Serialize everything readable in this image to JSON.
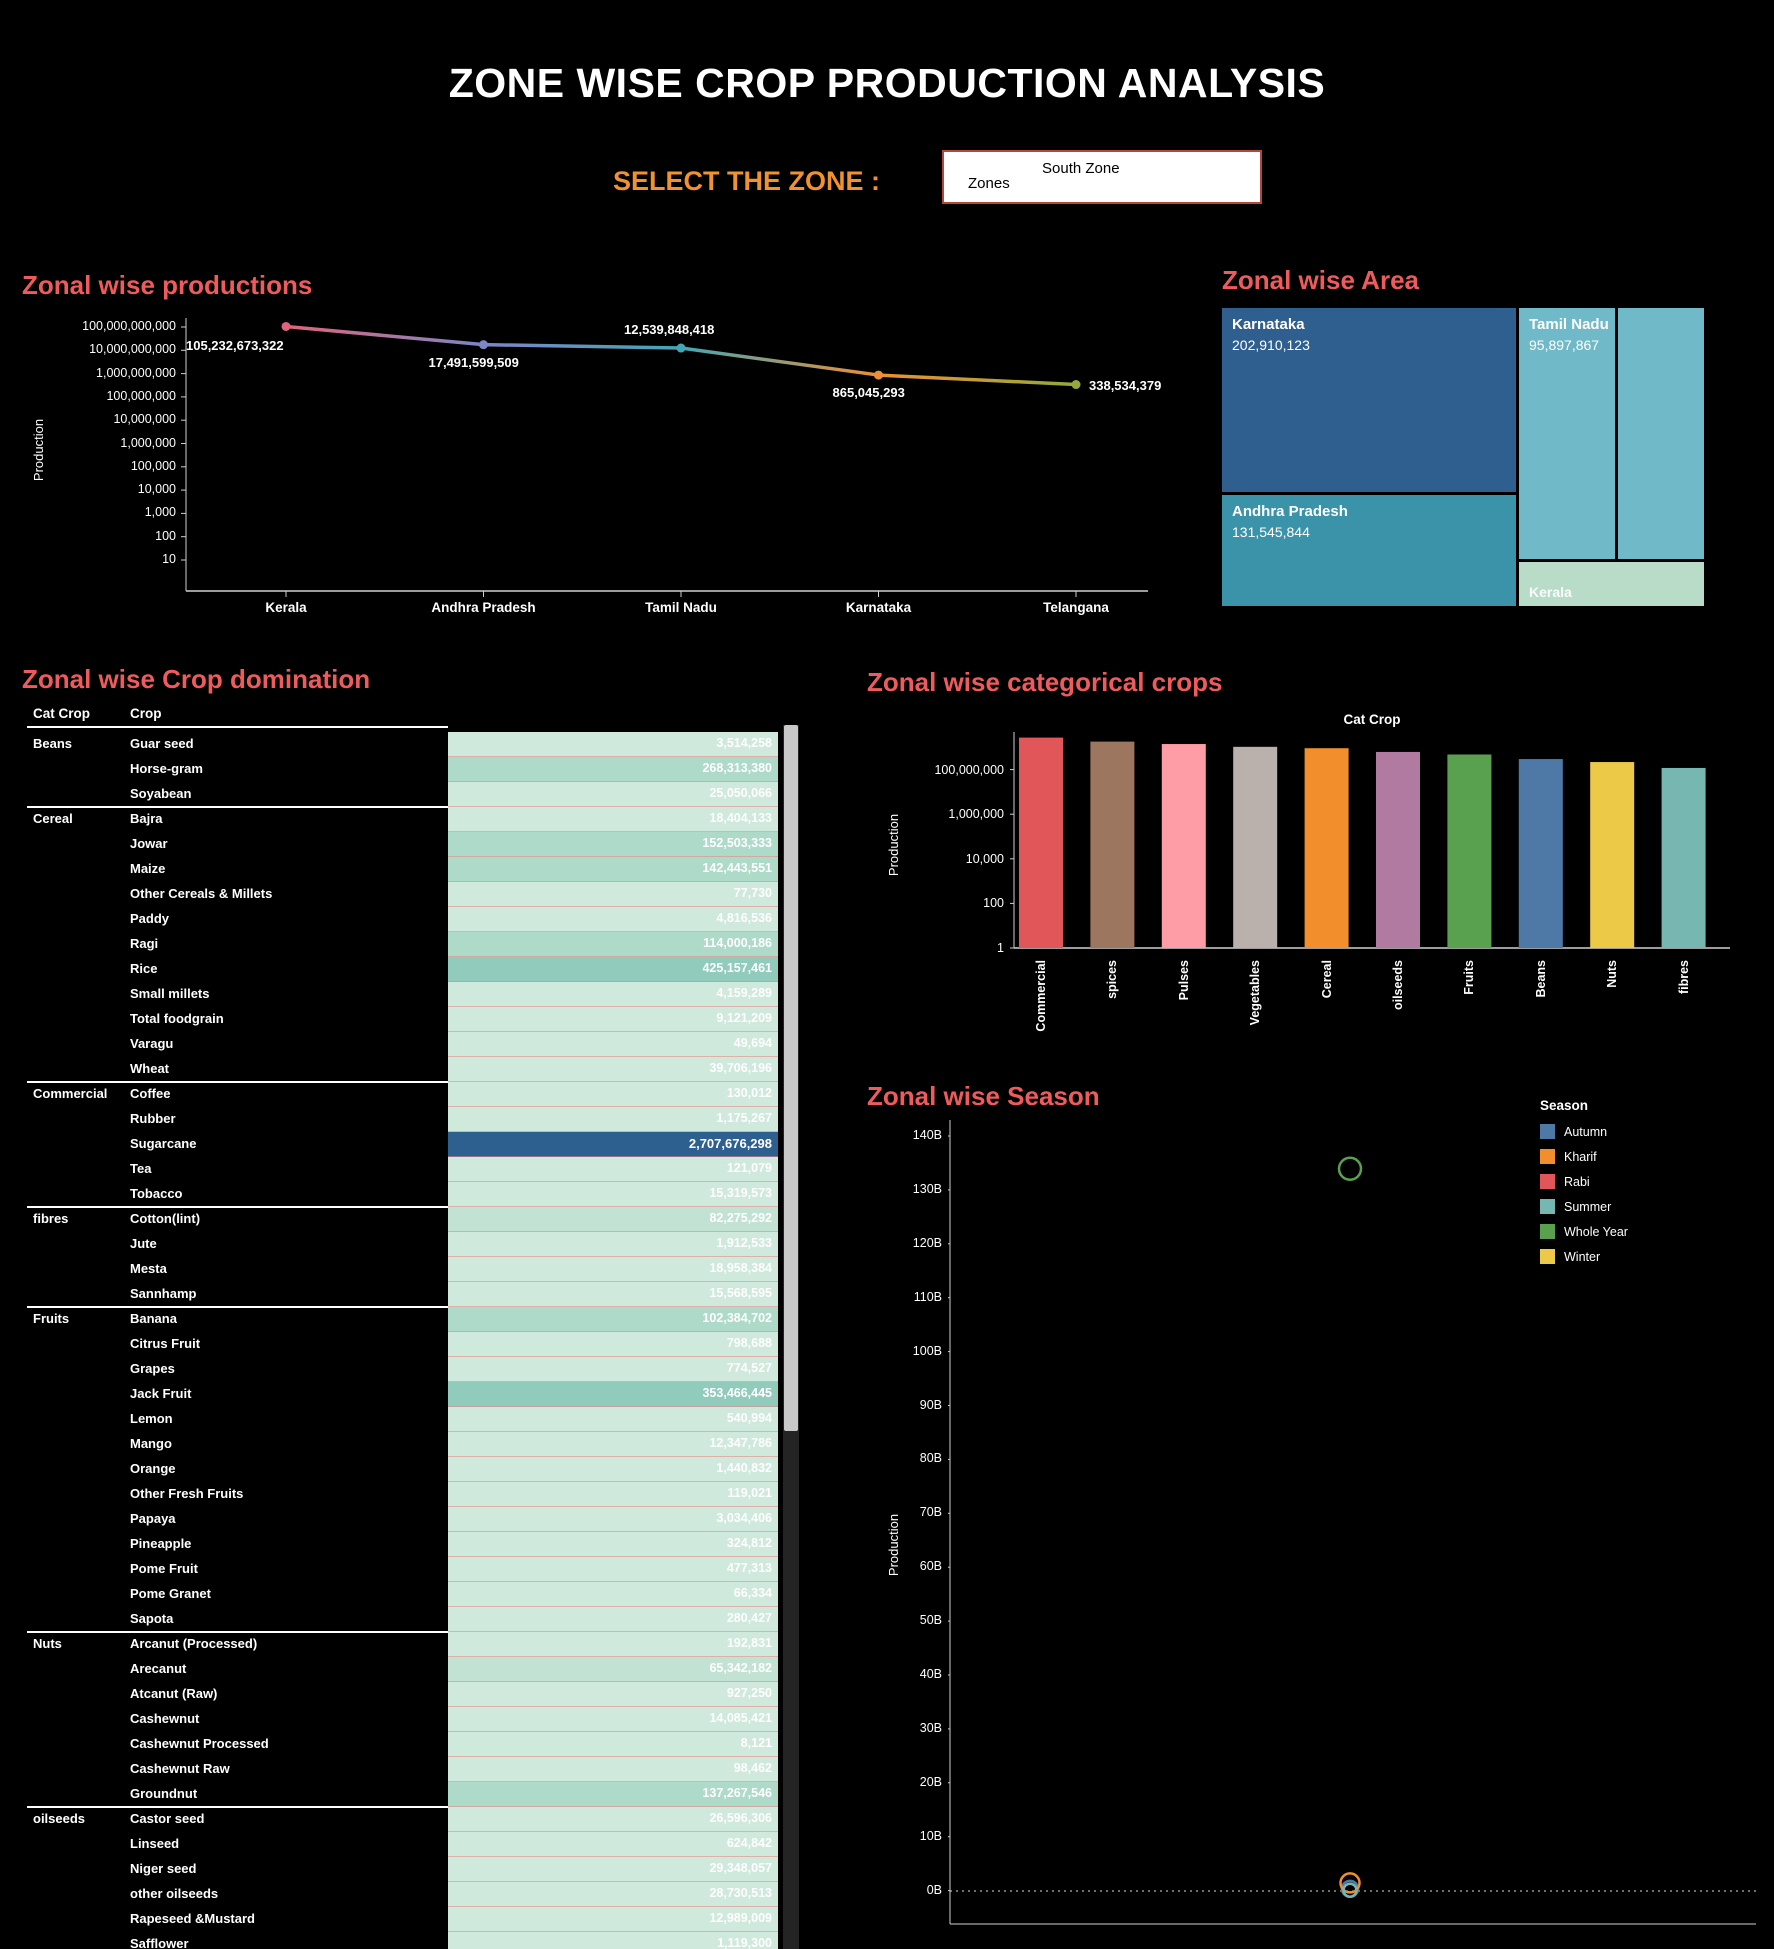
{
  "title": "ZONE WISE CROP PRODUCTION ANALYSIS",
  "zone_selector": {
    "label": "SELECT THE ZONE :",
    "param_title": "Zones",
    "selected": "South Zone"
  },
  "chart_data": [
    {
      "id": "productions",
      "type": "line",
      "title": "Zonal wise productions",
      "ylabel": "Production",
      "y_scale": "log",
      "x": [
        "Kerala",
        "Andhra Pradesh",
        "Tamil Nadu",
        "Karnataka",
        "Telangana"
      ],
      "values": [
        105232673322,
        17491599509,
        12539848418,
        865045293,
        338534379
      ],
      "value_labels": [
        "105,232,673,322",
        "17,491,599,509",
        "12,539,848,418",
        "865,045,293",
        "338,534,379"
      ],
      "y_ticks": [
        "100,000,000,000",
        "10,000,000,000",
        "1,000,000,000",
        "100,000,000",
        "10,000,000",
        "1,000,000",
        "100,000",
        "10,000",
        "1,000",
        "100",
        "10"
      ],
      "point_colors": [
        "#e0647b",
        "#7c86c6",
        "#43a6b6",
        "#ee8f35",
        "#95a83b"
      ]
    },
    {
      "id": "area",
      "type": "treemap",
      "title": "Zonal wise Area",
      "blocks": [
        {
          "name": "Karnataka",
          "value": "202,910,123",
          "color": "#2e5f8e"
        },
        {
          "name": "Andhra Pradesh",
          "value": "131,545,844",
          "color": "#3b93a9"
        },
        {
          "name": "Tamil Nadu",
          "value": "95,897,867",
          "color": "#6fb9c8"
        },
        {
          "name": "",
          "value": "",
          "color": "#6fb9c8"
        },
        {
          "name": "Kerala",
          "value": "",
          "color": "#b9dcc9"
        }
      ]
    },
    {
      "id": "domination",
      "type": "table",
      "title": "Zonal wise Crop domination",
      "columns": [
        "Cat Crop",
        "Crop"
      ],
      "highlight_color": "#2d608f",
      "groups": [
        {
          "cat": "Beans",
          "rows": [
            [
              "Guar seed",
              "3,514,258"
            ],
            [
              "Horse-gram",
              "268,313,380"
            ],
            [
              "Soyabean",
              "25,050,066"
            ]
          ]
        },
        {
          "cat": "Cereal",
          "rows": [
            [
              "Bajra",
              "18,404,133"
            ],
            [
              "Jowar",
              "152,503,333"
            ],
            [
              "Maize",
              "142,443,551"
            ],
            [
              "Other Cereals & Millets",
              "77,730"
            ],
            [
              "Paddy",
              "4,816,536"
            ],
            [
              "Ragi",
              "114,000,186"
            ],
            [
              "Rice",
              "425,157,461"
            ],
            [
              "Small millets",
              "4,159,289"
            ],
            [
              "Total foodgrain",
              "9,121,209"
            ],
            [
              "Varagu",
              "49,694"
            ],
            [
              "Wheat",
              "39,706,196"
            ]
          ]
        },
        {
          "cat": "Commercial",
          "rows": [
            [
              "Coffee",
              "130,012"
            ],
            [
              "Rubber",
              "1,175,267"
            ],
            [
              "Sugarcane",
              "2,707,676,298"
            ],
            [
              "Tea",
              "121,079"
            ],
            [
              "Tobacco",
              "15,319,573"
            ]
          ]
        },
        {
          "cat": "fibres",
          "rows": [
            [
              "Cotton(lint)",
              "82,275,292"
            ],
            [
              "Jute",
              "1,912,533"
            ],
            [
              "Mesta",
              "18,958,384"
            ],
            [
              "Sannhamp",
              "15,568,595"
            ]
          ]
        },
        {
          "cat": "Fruits",
          "rows": [
            [
              "Banana",
              "102,384,702"
            ],
            [
              "Citrus Fruit",
              "798,688"
            ],
            [
              "Grapes",
              "774,527"
            ],
            [
              "Jack Fruit",
              "353,466,445"
            ],
            [
              "Lemon",
              "540,994"
            ],
            [
              "Mango",
              "12,347,786"
            ],
            [
              "Orange",
              "1,440,832"
            ],
            [
              "Other Fresh Fruits",
              "119,021"
            ],
            [
              "Papaya",
              "3,034,406"
            ],
            [
              "Pineapple",
              "324,812"
            ],
            [
              "Pome Fruit",
              "477,313"
            ],
            [
              "Pome Granet",
              "66,334"
            ],
            [
              "Sapota",
              "280,427"
            ]
          ]
        },
        {
          "cat": "Nuts",
          "rows": [
            [
              "Arcanut (Processed)",
              "192,831"
            ],
            [
              "Arecanut",
              "65,342,182"
            ],
            [
              "Atcanut (Raw)",
              "927,250"
            ],
            [
              "Cashewnut",
              "14,085,421"
            ],
            [
              "Cashewnut Processed",
              "8,121"
            ],
            [
              "Cashewnut Raw",
              "98,462"
            ],
            [
              "Groundnut",
              "137,267,546"
            ]
          ]
        },
        {
          "cat": "oilseeds",
          "rows": [
            [
              "Castor seed",
              "26,596,306"
            ],
            [
              "Linseed",
              "624,842"
            ],
            [
              "Niger seed",
              "29,348,057"
            ],
            [
              "other oilseeds",
              "28,730,513"
            ],
            [
              "Rapeseed &Mustard",
              "12,989,009"
            ],
            [
              "Safflower",
              "1,119,300"
            ]
          ]
        }
      ]
    },
    {
      "id": "categorical",
      "type": "bar",
      "title": "Zonal wise categorical crops",
      "axis_title": "Cat Crop",
      "ylabel": "Production",
      "y_scale": "log",
      "categories": [
        "Commercial",
        "spices",
        "Pulses",
        "Vegetables",
        "Cereal",
        "oilseeds",
        "Fruits",
        "Beans",
        "Nuts",
        "fibres"
      ],
      "values": [
        2724422229,
        1800000000,
        1400000000,
        1050000000,
        910439318,
        620000000,
        476056287,
        296877704,
        217921813,
        118714804
      ],
      "colors": [
        "#e15759",
        "#9d7660",
        "#ff9da7",
        "#bab0ac",
        "#f28e2b",
        "#b07aa1",
        "#59a14f",
        "#4e79a7",
        "#edc948",
        "#76b7b2"
      ],
      "y_ticks": [
        "100,000,000",
        "1,000,000",
        "10,000",
        "100",
        "1"
      ]
    },
    {
      "id": "season",
      "type": "scatter",
      "title": "Zonal wise Season",
      "ylabel": "Production",
      "y_ticks": [
        "140B",
        "130B",
        "120B",
        "110B",
        "100B",
        "90B",
        "80B",
        "70B",
        "60B",
        "50B",
        "40B",
        "30B",
        "20B",
        "10B",
        "0B"
      ],
      "legend_title": "Season",
      "series": [
        {
          "name": "Autumn",
          "color": "#4e79a7",
          "value": 400000000
        },
        {
          "name": "Kharif",
          "color": "#f28e2b",
          "value": 1500000000
        },
        {
          "name": "Rabi",
          "color": "#e15759",
          "value": null
        },
        {
          "name": "Summer",
          "color": "#76b7b2",
          "value": 150000000
        },
        {
          "name": "Whole Year",
          "color": "#59a14f",
          "value": 134000000000
        },
        {
          "name": "Winter",
          "color": "#edc948",
          "value": null
        }
      ]
    }
  ]
}
